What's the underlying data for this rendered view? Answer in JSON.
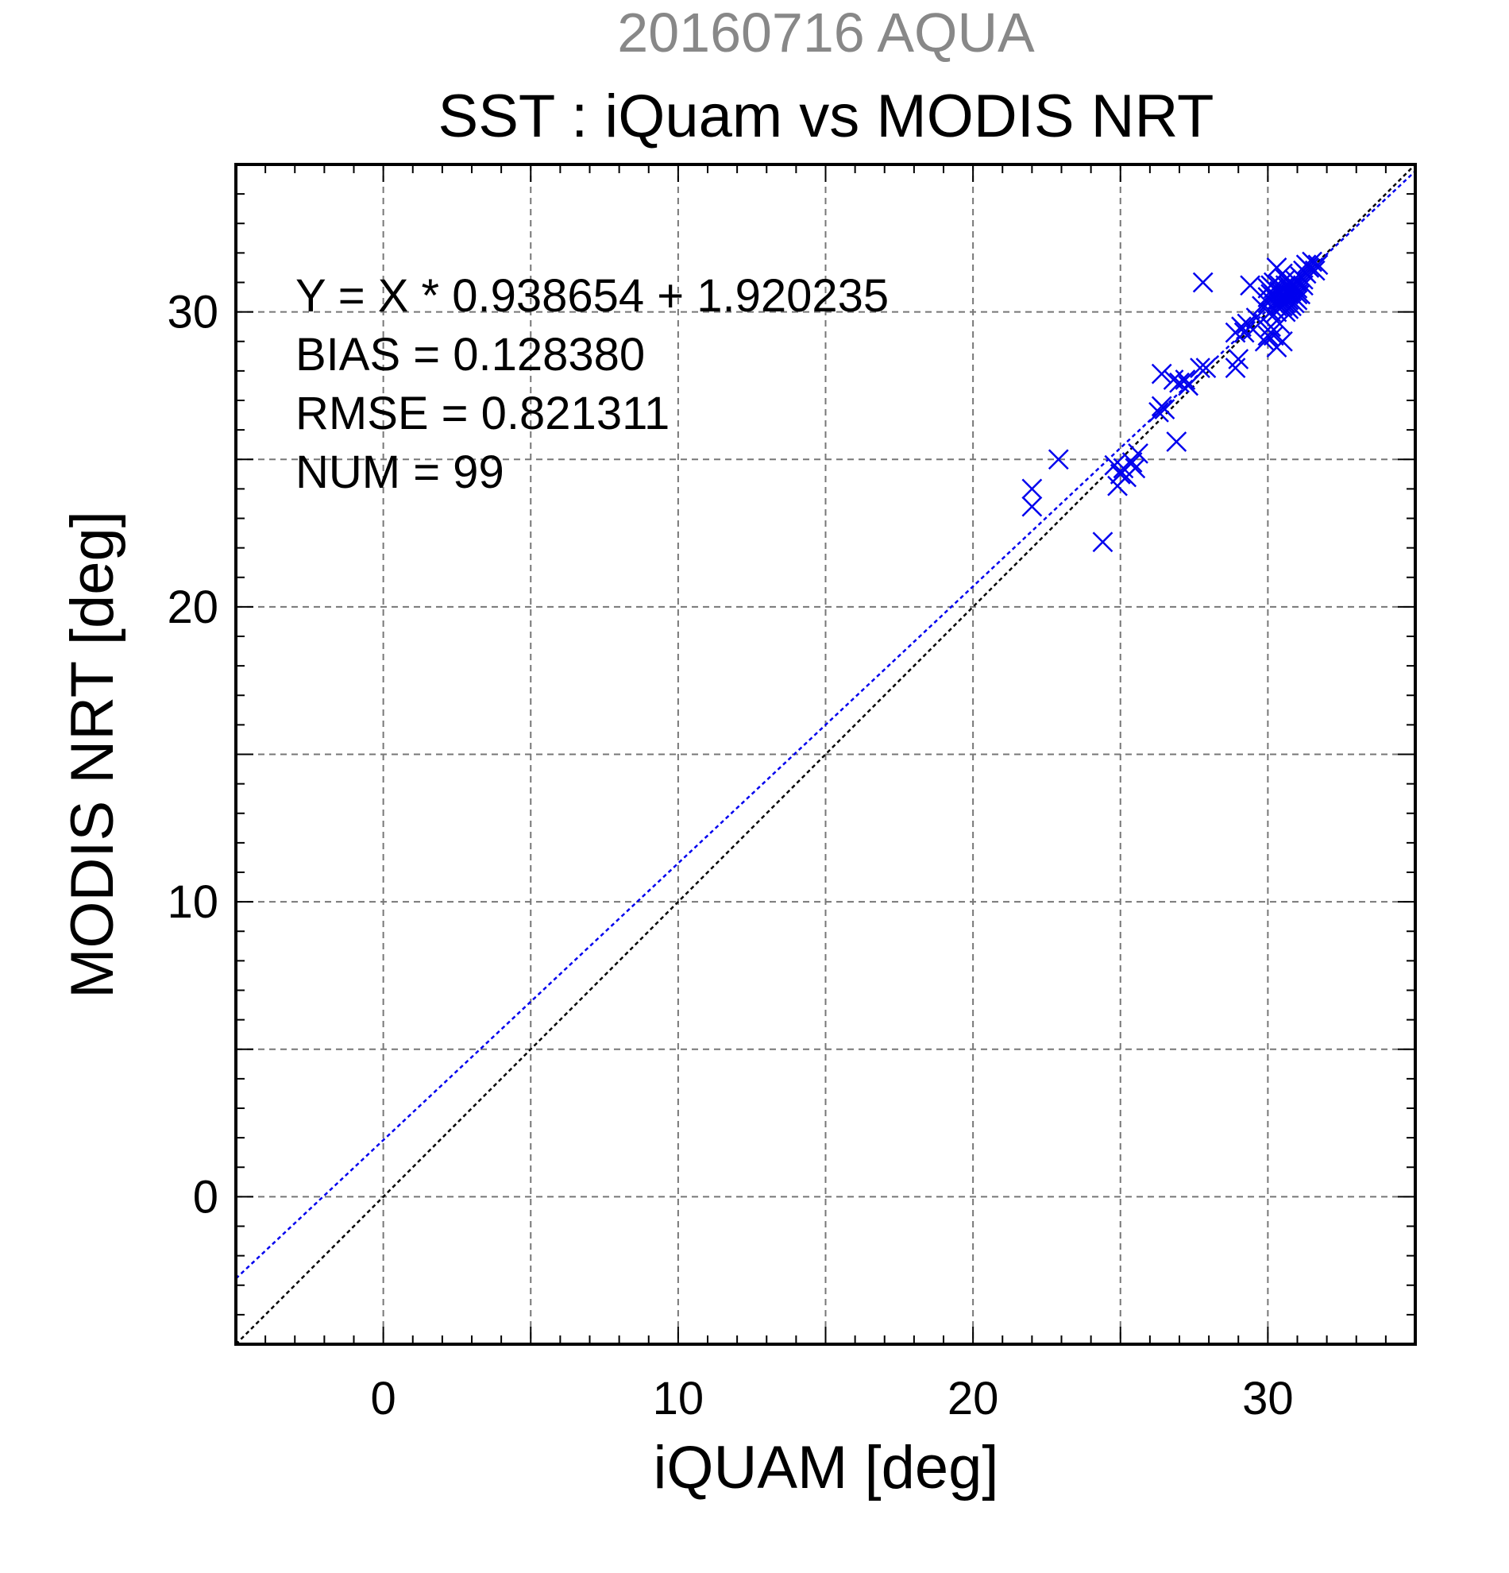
{
  "header": {
    "date_sat": "20160716 AQUA",
    "title": "SST : iQuam vs MODIS NRT"
  },
  "stats": {
    "equation": "Y = X * 0.938654 + 1.920235",
    "bias": "BIAS = 0.128380",
    "rmse": "RMSE = 0.821311",
    "num": "NUM = 99"
  },
  "colors": {
    "points": "#0000ee",
    "fit_line": "#0000ee",
    "identity_line": "#000000",
    "grid": "#777777",
    "subtitle": "#888888"
  },
  "chart_data": {
    "type": "scatter",
    "title": "SST : iQuam vs MODIS NRT",
    "subtitle": "20160716 AQUA",
    "xlabel": "iQUAM [deg]",
    "ylabel": "MODIS NRT [deg]",
    "xlim": [
      -5,
      35
    ],
    "ylim": [
      -5,
      35
    ],
    "xticks": [
      0,
      10,
      20,
      30
    ],
    "yticks": [
      0,
      10,
      20,
      30
    ],
    "grid": true,
    "marker": "x",
    "fit": {
      "slope": 0.938654,
      "intercept": 1.920235
    },
    "identity_line": true,
    "points": [
      [
        22.0,
        24.0
      ],
      [
        22.0,
        23.4
      ],
      [
        22.9,
        25.0
      ],
      [
        24.4,
        22.2
      ],
      [
        24.8,
        24.8
      ],
      [
        24.9,
        24.1
      ],
      [
        25.0,
        24.5
      ],
      [
        25.1,
        24.7
      ],
      [
        25.2,
        24.4
      ],
      [
        25.4,
        24.9
      ],
      [
        25.5,
        24.7
      ],
      [
        25.6,
        25.2
      ],
      [
        26.3,
        26.6
      ],
      [
        26.4,
        26.8
      ],
      [
        26.5,
        26.7
      ],
      [
        26.4,
        27.9
      ],
      [
        26.8,
        27.7
      ],
      [
        26.9,
        25.6
      ],
      [
        27.0,
        27.6
      ],
      [
        27.2,
        27.7
      ],
      [
        27.3,
        27.5
      ],
      [
        27.7,
        28.1
      ],
      [
        27.9,
        28.1
      ],
      [
        27.8,
        31.0
      ],
      [
        28.9,
        28.1
      ],
      [
        29.0,
        28.4
      ],
      [
        28.9,
        29.3
      ],
      [
        29.1,
        29.5
      ],
      [
        29.2,
        29.3
      ],
      [
        29.3,
        29.6
      ],
      [
        29.4,
        30.9
      ],
      [
        29.5,
        29.4
      ],
      [
        29.6,
        29.8
      ],
      [
        29.8,
        30.2
      ],
      [
        29.9,
        29.0
      ],
      [
        30.0,
        29.2
      ],
      [
        30.0,
        30.5
      ],
      [
        30.1,
        30.9
      ],
      [
        30.1,
        29.5
      ],
      [
        30.2,
        30.1
      ],
      [
        30.2,
        29.2
      ],
      [
        30.3,
        30.4
      ],
      [
        30.3,
        28.8
      ],
      [
        30.4,
        29.6
      ],
      [
        30.4,
        30.7
      ],
      [
        30.5,
        29.0
      ],
      [
        30.5,
        30.2
      ],
      [
        30.6,
        30.0
      ],
      [
        30.6,
        31.1
      ],
      [
        30.7,
        30.4
      ],
      [
        30.3,
        31.5
      ],
      [
        30.5,
        31.3
      ],
      [
        30.8,
        30.6
      ],
      [
        30.9,
        30.8
      ],
      [
        31.0,
        31.0
      ],
      [
        31.0,
        30.4
      ],
      [
        31.1,
        31.2
      ],
      [
        31.2,
        31.4
      ],
      [
        31.2,
        30.9
      ],
      [
        31.3,
        31.6
      ],
      [
        31.4,
        31.5
      ],
      [
        31.5,
        31.7
      ],
      [
        31.6,
        31.4
      ],
      [
        31.7,
        31.6
      ],
      [
        30.0,
        30.3
      ],
      [
        30.1,
        30.6
      ],
      [
        30.2,
        30.8
      ],
      [
        30.3,
        30.0
      ],
      [
        30.4,
        30.2
      ],
      [
        30.5,
        30.5
      ],
      [
        30.6,
        30.7
      ],
      [
        30.7,
        30.9
      ],
      [
        30.8,
        31.0
      ],
      [
        30.9,
        30.3
      ],
      [
        31.0,
        30.6
      ],
      [
        30.2,
        30.5
      ],
      [
        30.3,
        30.7
      ],
      [
        30.4,
        30.4
      ],
      [
        30.6,
        30.3
      ],
      [
        30.7,
        30.1
      ],
      [
        30.1,
        30.0
      ],
      [
        30.0,
        30.8
      ],
      [
        30.2,
        31.0
      ],
      [
        30.4,
        30.9
      ],
      [
        30.5,
        30.8
      ],
      [
        30.6,
        30.5
      ],
      [
        30.8,
        30.2
      ],
      [
        30.9,
        30.5
      ],
      [
        31.0,
        30.8
      ],
      [
        31.1,
        30.6
      ],
      [
        31.2,
        31.1
      ],
      [
        31.3,
        31.3
      ],
      [
        30.3,
        30.2
      ],
      [
        30.4,
        30.6
      ],
      [
        30.5,
        30.4
      ],
      [
        30.7,
        30.6
      ],
      [
        30.6,
        30.9
      ],
      [
        30.8,
        30.7
      ],
      [
        30.9,
        31.1
      ]
    ]
  }
}
